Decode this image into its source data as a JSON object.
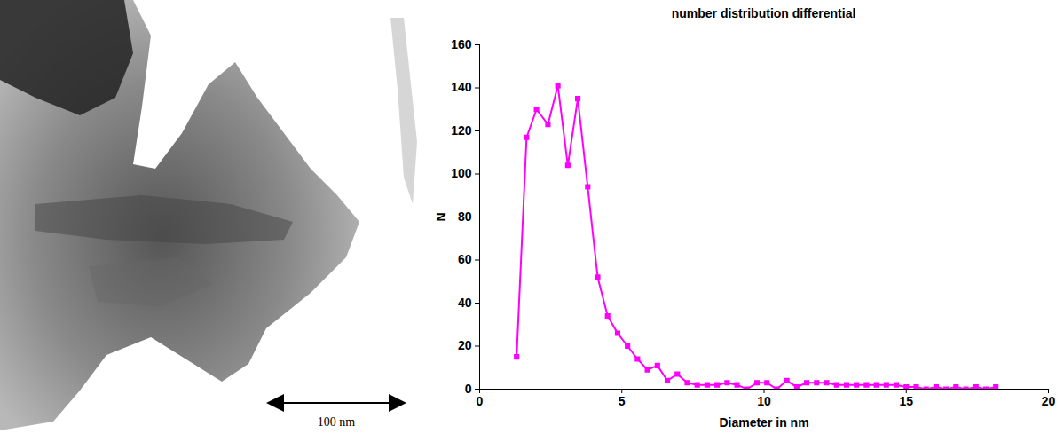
{
  "image": {
    "scale_bar_label": "100 nm"
  },
  "chart_data": {
    "type": "line",
    "title": "number distribution differential",
    "x_label": "Diameter in nm",
    "y_label": "N",
    "x": [
      1.3,
      1.65,
      2.0,
      2.4,
      2.75,
      3.1,
      3.45,
      3.8,
      4.15,
      4.5,
      4.85,
      5.2,
      5.55,
      5.9,
      6.25,
      6.6,
      6.95,
      7.3,
      7.65,
      8.0,
      8.35,
      8.7,
      9.05,
      9.4,
      9.75,
      10.1,
      10.45,
      10.8,
      11.15,
      11.5,
      11.85,
      12.2,
      12.55,
      12.9,
      13.25,
      13.6,
      13.95,
      14.3,
      14.65,
      15.0,
      15.35,
      15.7,
      16.05,
      16.4,
      16.75,
      17.1,
      17.45,
      17.8,
      18.15
    ],
    "values": [
      15,
      117,
      130,
      123,
      141,
      104,
      135,
      94,
      52,
      34,
      26,
      20,
      14,
      9,
      11,
      4,
      7,
      3,
      2,
      2,
      2,
      3,
      2,
      0,
      3,
      3,
      0,
      4,
      1,
      3,
      3,
      3,
      2,
      2,
      2,
      2,
      2,
      2,
      2,
      1,
      1,
      0,
      1,
      0,
      1,
      0,
      1,
      0,
      1
    ],
    "color": "#ff00ff",
    "marker": "square",
    "xlim": [
      0,
      20
    ],
    "xticks": [
      0,
      5,
      10,
      15,
      20
    ],
    "ylim": [
      0,
      160
    ],
    "yticks": [
      0,
      20,
      40,
      60,
      80,
      100,
      120,
      140,
      160
    ],
    "grid": false
  }
}
